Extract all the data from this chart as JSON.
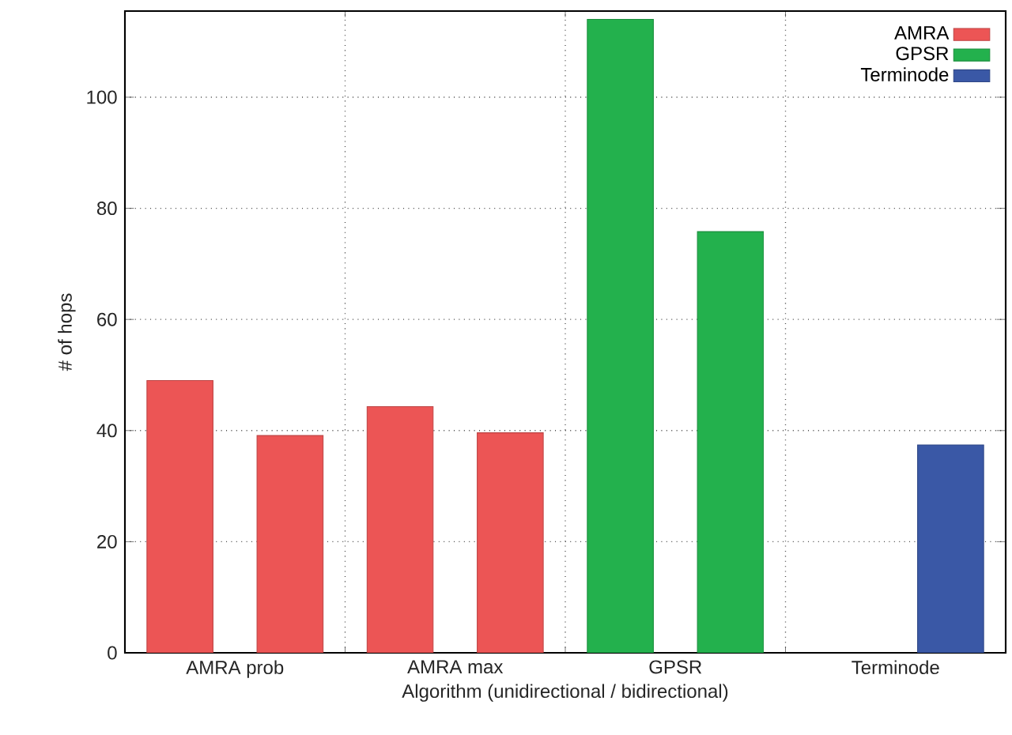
{
  "chart_data": {
    "type": "bar",
    "xlabel": "Algorithm (unidirectional / bidirectional)",
    "ylabel": "# of hops",
    "categories": [
      "AMRA prob",
      "AMRA max",
      "GPSR",
      "Terminode"
    ],
    "series": [
      {
        "name": "AMRA",
        "color": "#ec5555",
        "values": [
          49,
          44.3,
          null,
          null
        ]
      },
      {
        "color": "#ec5555",
        "values": [
          39.1,
          39.6,
          null,
          null
        ]
      },
      {
        "name": "GPSR",
        "color": "#23b14d",
        "values": [
          null,
          null,
          114,
          null
        ]
      },
      {
        "color": "#23b14d",
        "values": [
          null,
          null,
          75.8,
          null
        ]
      },
      {
        "name": "Terminode",
        "color": "#3a58a6",
        "values": [
          null,
          null,
          null,
          null
        ]
      },
      {
        "color": "#3a58a6",
        "values": [
          null,
          null,
          null,
          37.4
        ]
      }
    ],
    "ylim": [
      0,
      115.5
    ],
    "yticks": [
      0,
      20,
      40,
      60,
      80,
      100
    ],
    "grid": true,
    "legend": "top right"
  }
}
